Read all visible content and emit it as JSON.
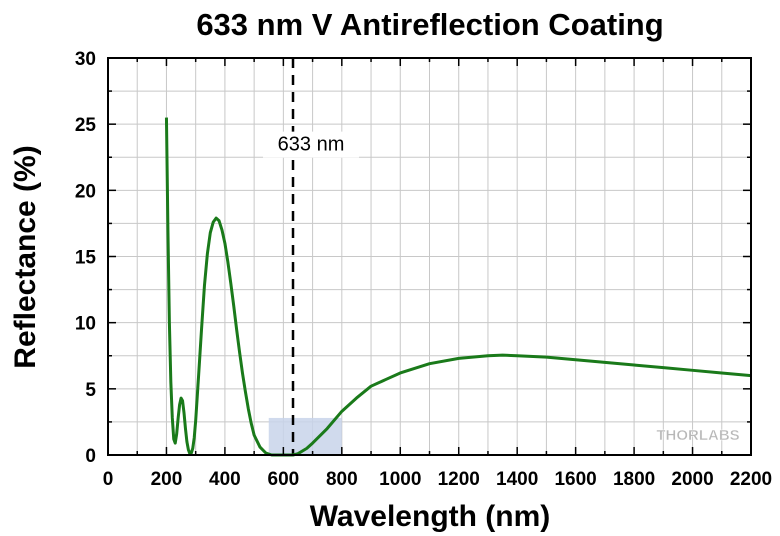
{
  "chart_data": {
    "type": "line",
    "title": "633 nm V Antireflection Coating",
    "xlabel": "Wavelength (nm)",
    "ylabel": "Reflectance (%)",
    "xlim": [
      0,
      2200
    ],
    "ylim": [
      0,
      30
    ],
    "xticks": [
      0,
      200,
      400,
      600,
      800,
      1000,
      1200,
      1400,
      1600,
      1800,
      2000,
      2200
    ],
    "yticks": [
      0,
      5,
      10,
      15,
      20,
      25,
      30
    ],
    "grid": true,
    "series": [
      {
        "color": "#1a7a1a",
        "x": [
          200,
          205,
          210,
          215,
          220,
          225,
          230,
          235,
          240,
          245,
          250,
          255,
          260,
          265,
          270,
          275,
          280,
          285,
          290,
          295,
          300,
          310,
          320,
          330,
          340,
          350,
          360,
          370,
          380,
          390,
          400,
          410,
          420,
          430,
          440,
          450,
          460,
          470,
          480,
          490,
          500,
          520,
          540,
          560,
          580,
          600,
          620,
          633,
          650,
          680,
          700,
          750,
          800,
          850,
          900,
          950,
          1000,
          1100,
          1200,
          1300,
          1350,
          1400,
          1500,
          1600,
          1700,
          1800,
          1900,
          2000,
          2100,
          2200
        ],
        "y": [
          25.5,
          17,
          10,
          5.5,
          2.8,
          1.2,
          0.9,
          1.6,
          2.8,
          3.8,
          4.3,
          4.1,
          3.2,
          2.0,
          1.0,
          0.4,
          0.1,
          0.15,
          0.5,
          1.3,
          2.6,
          6.0,
          9.5,
          12.8,
          15.2,
          16.8,
          17.6,
          17.9,
          17.7,
          17.0,
          16.0,
          14.6,
          13.0,
          11.3,
          9.5,
          7.8,
          6.2,
          4.8,
          3.5,
          2.4,
          1.5,
          0.6,
          0.15,
          0.0,
          0.0,
          0.0,
          0.0,
          0.0,
          0.1,
          0.5,
          0.9,
          2.0,
          3.3,
          4.3,
          5.2,
          5.7,
          6.2,
          6.9,
          7.3,
          7.5,
          7.55,
          7.5,
          7.4,
          7.2,
          7.0,
          6.8,
          6.6,
          6.4,
          6.2,
          6.0
        ]
      }
    ],
    "highlight_band": {
      "x": [
        550,
        800
      ],
      "y": [
        0,
        2.8
      ],
      "color": "#c8d4ea"
    },
    "vline": {
      "x": 633,
      "label": "633 nm"
    },
    "logo_text": "THORLABS"
  }
}
